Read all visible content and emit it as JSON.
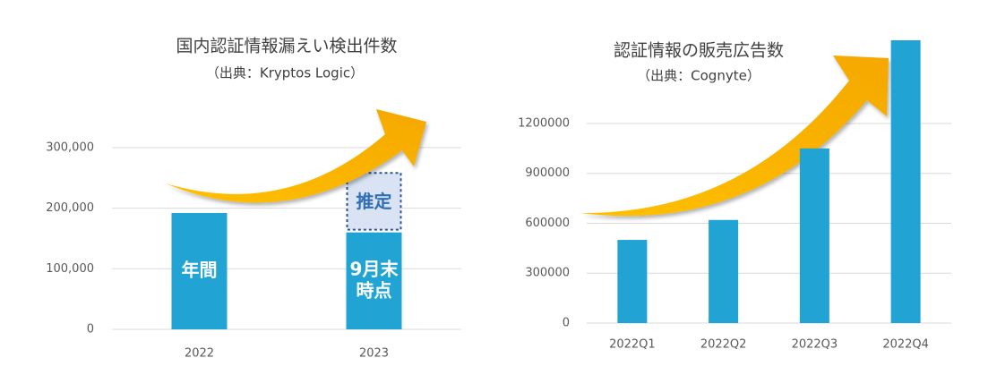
{
  "chart_data": [
    {
      "type": "bar",
      "title": "国内認証情報漏えい検出件数",
      "subtitle": "（出典：Kryptos Logic）",
      "categories": [
        "2022",
        "2023"
      ],
      "values": [
        192000,
        160000
      ],
      "color": "#21a4d3",
      "estimate_values": [
        null,
        98000
      ],
      "estimate_label": "推定",
      "estimate_color": "#dae3f3",
      "bar_labels": [
        [
          "年間"
        ],
        [
          "9月末",
          "時点"
        ]
      ],
      "ylim": [
        0,
        350000
      ],
      "yticks": [
        {
          "value": 0,
          "label": "0"
        },
        {
          "value": 100000,
          "label": "100,000"
        },
        {
          "value": 200000,
          "label": "200,000"
        },
        {
          "value": 300000,
          "label": "300,000"
        }
      ],
      "grid": true
    },
    {
      "type": "bar",
      "title": "認証情報の販売広告数",
      "subtitle": "（出典：Cognyte）",
      "categories": [
        "2022Q1",
        "2022Q2",
        "2022Q3",
        "2022Q4"
      ],
      "values": [
        500000,
        620000,
        1050000,
        1700000
      ],
      "color": "#21a4d3",
      "ylim": [
        0,
        1700000
      ],
      "yticks": [
        0,
        300000,
        600000,
        900000,
        1200000
      ],
      "grid": true
    }
  ]
}
